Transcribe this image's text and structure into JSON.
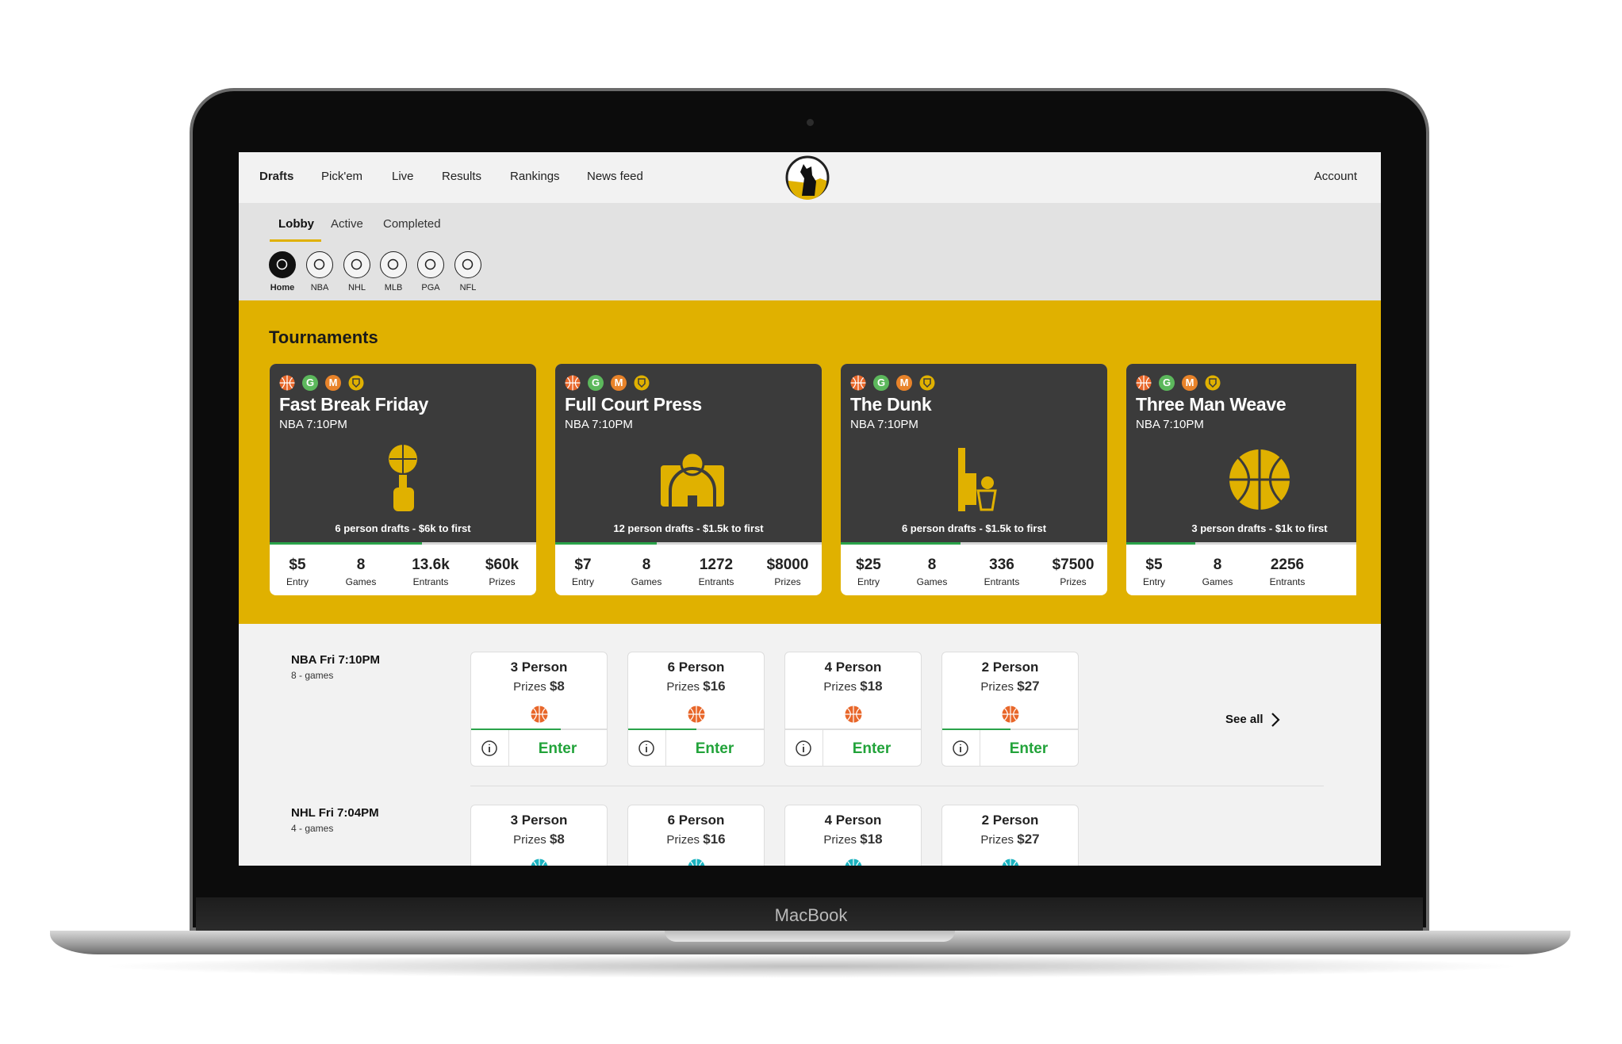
{
  "nav": {
    "items": [
      "Drafts",
      "Pick'em",
      "Live",
      "Results",
      "Rankings",
      "News feed"
    ],
    "account": "Account"
  },
  "tabs": [
    "Lobby",
    "Active",
    "Completed"
  ],
  "sports": [
    "Home",
    "NBA",
    "NHL",
    "MLB",
    "PGA",
    "NFL"
  ],
  "tournaments": {
    "title": "Tournaments",
    "badges": [
      "G",
      "M"
    ],
    "cards": [
      {
        "title": "Fast Break Friday",
        "subtitle": "NBA 7:10PM",
        "footer": "6 person drafts - $6k to first",
        "stats": [
          {
            "value": "$5",
            "label": "Entry"
          },
          {
            "value": "8",
            "label": "Games"
          },
          {
            "value": "13.6k",
            "label": "Entrants"
          },
          {
            "value": "$60k",
            "label": "Prizes"
          }
        ]
      },
      {
        "title": "Full Court Press",
        "subtitle": "NBA 7:10PM",
        "footer": "12 person drafts - $1.5k to first",
        "stats": [
          {
            "value": "$7",
            "label": "Entry"
          },
          {
            "value": "8",
            "label": "Games"
          },
          {
            "value": "1272",
            "label": "Entrants"
          },
          {
            "value": "$8000",
            "label": "Prizes"
          }
        ]
      },
      {
        "title": "The Dunk",
        "subtitle": "NBA 7:10PM",
        "footer": "6 person drafts - $1.5k to first",
        "stats": [
          {
            "value": "$25",
            "label": "Entry"
          },
          {
            "value": "8",
            "label": "Games"
          },
          {
            "value": "336",
            "label": "Entrants"
          },
          {
            "value": "$7500",
            "label": "Prizes"
          }
        ]
      },
      {
        "title": "Three Man Weave",
        "subtitle": "NBA 7:10PM",
        "footer": "3 person drafts - $1k to first",
        "stats": [
          {
            "value": "$5",
            "label": "Entry"
          },
          {
            "value": "8",
            "label": "Games"
          },
          {
            "value": "2256",
            "label": "Entrants"
          }
        ]
      }
    ]
  },
  "drafts": {
    "prizes_label": "Prizes",
    "enter_label": "Enter",
    "see_all": "See all",
    "rows": [
      {
        "league": "NBA Fri 7:10PM",
        "games": "8 - games",
        "sport": "NBA",
        "entries": [
          {
            "title": "3 Person",
            "prize": "$8"
          },
          {
            "title": "6 Person",
            "prize": "$16"
          },
          {
            "title": "4 Person",
            "prize": "$18"
          },
          {
            "title": "2 Person",
            "prize": "$27"
          }
        ]
      },
      {
        "league": "NHL Fri 7:04PM",
        "games": "4 - games",
        "sport": "NHL",
        "entries": [
          {
            "title": "3 Person",
            "prize": "$8"
          },
          {
            "title": "6 Person",
            "prize": "$16"
          },
          {
            "title": "4 Person",
            "prize": "$18"
          },
          {
            "title": "2 Person",
            "prize": "$27"
          }
        ]
      }
    ]
  },
  "device_label": "MacBook"
}
